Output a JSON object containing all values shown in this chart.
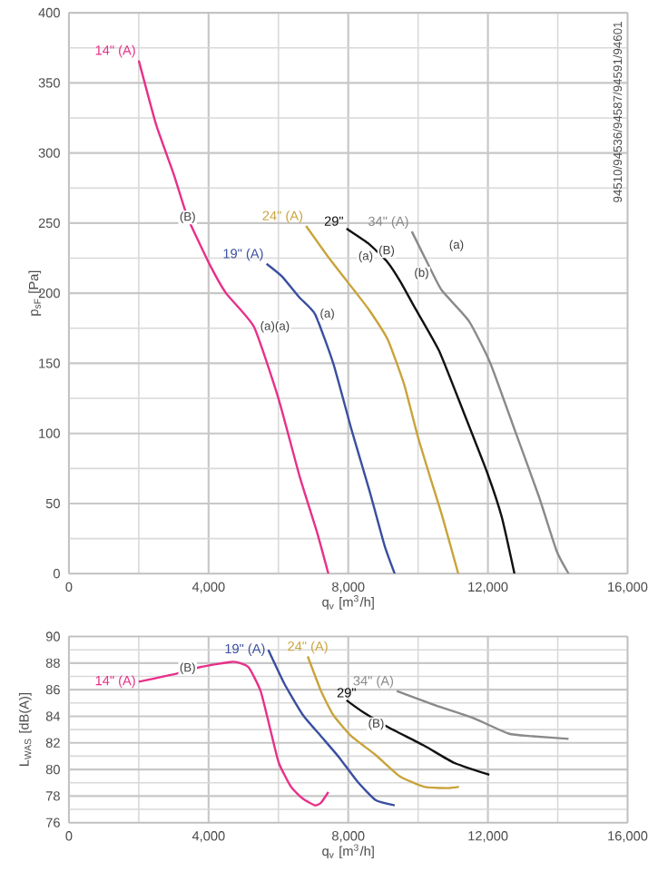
{
  "chart_data": [
    {
      "type": "line",
      "xlabel": "q$_{v}$ [m$^{3}$/h]",
      "ylabel": "p$_{sF}$ [Pa]",
      "xlim": [
        0,
        16000
      ],
      "ylim": [
        0,
        400
      ],
      "xticks": [
        0,
        {
          "value": 4000,
          "label": "4,000"
        },
        {
          "value": 8000,
          "label": "8,000"
        },
        {
          "value": 12000,
          "label": "12,000"
        },
        {
          "value": 16000,
          "label": "16,000"
        }
      ],
      "yticks": [
        0,
        50,
        100,
        150,
        200,
        250,
        300,
        350,
        400
      ],
      "grid": true,
      "series": [
        {
          "name": "14\" (A)",
          "color": "#e8308a",
          "x": [
            2000,
            2500,
            3000,
            3400,
            4000,
            4500,
            5300,
            6000,
            6600,
            7100,
            7430
          ],
          "values": [
            366,
            320,
            285,
            254,
            222,
            200,
            176,
            125,
            70,
            30,
            0
          ]
        },
        {
          "name": "19\" (A)",
          "color": "#3a4fa0",
          "x": [
            5660,
            6100,
            6600,
            7050,
            7570,
            8090,
            8610,
            9040,
            9330
          ],
          "values": [
            221,
            212,
            197,
            185,
            150,
            103,
            59,
            20,
            0
          ]
        },
        {
          "name": "24\" (A)",
          "color": "#c9a33a",
          "x": [
            6790,
            7480,
            8170,
            8600,
            9130,
            9600,
            9990,
            10330,
            10680,
            11150
          ],
          "values": [
            248,
            224,
            202,
            188,
            167,
            135,
            98,
            70,
            42,
            0
          ]
        },
        {
          "name": "29\"",
          "color": "#111111",
          "x": [
            7950,
            8600,
            9130,
            9500,
            9900,
            10600,
            11290,
            11980,
            12400,
            12760
          ],
          "values": [
            246,
            235,
            222,
            208,
            190,
            159,
            116,
            72,
            40,
            0
          ]
        },
        {
          "name": "34\" (A)",
          "color": "#8a8a8a",
          "x": [
            9820,
            10300,
            10680,
            11460,
            12070,
            12760,
            13460,
            13970,
            14310
          ],
          "values": [
            244,
            220,
            202,
            180,
            150,
            103,
            55,
            16,
            0
          ]
        }
      ],
      "annotations": [
        {
          "text": "(B)",
          "x": 3400,
          "y": 254
        },
        {
          "text": "(a)(a)",
          "x": 5900,
          "y": 176
        },
        {
          "text": "(a)",
          "x": 7400,
          "y": 185
        },
        {
          "text": "(a)",
          "x": 8500,
          "y": 226
        },
        {
          "text": "(B)",
          "x": 9100,
          "y": 230
        },
        {
          "text": "(b)",
          "x": 10100,
          "y": 214
        },
        {
          "text": "(a)",
          "x": 11100,
          "y": 234
        },
        "94510/94536/94587/94591/94601"
      ]
    },
    {
      "type": "line",
      "xlabel": "q$_{v}$ [m$^{3}$/h]",
      "ylabel": "L$_{WAS}$ [dB(A)]",
      "xlim": [
        0,
        16000
      ],
      "ylim": [
        76,
        90
      ],
      "xticks": [
        0,
        {
          "value": 4000,
          "label": "4,000"
        },
        {
          "value": 8000,
          "label": "8,000"
        },
        {
          "value": 12000,
          "label": "12,000"
        },
        {
          "value": 16000,
          "label": "16,000"
        }
      ],
      "yticks": [
        76,
        78,
        80,
        82,
        84,
        86,
        88,
        90
      ],
      "grid": true,
      "series": [
        {
          "name": "14\" (A)",
          "color": "#e8308a",
          "x": [
            2000,
            3070,
            3760,
            4710,
            5140,
            5490,
            5750,
            6010,
            6360,
            6700,
            7050,
            7220,
            7430
          ],
          "values": [
            86.6,
            87.2,
            87.7,
            88.1,
            87.7,
            85.9,
            83.2,
            80.5,
            78.7,
            77.8,
            77.3,
            77.5,
            78.3
          ]
        },
        {
          "name": "19\" (A)",
          "color": "#3a4fa0",
          "x": [
            5710,
            6180,
            6700,
            7220,
            7740,
            8260,
            8780,
            9330
          ],
          "values": [
            89.0,
            86.4,
            84.1,
            82.5,
            80.9,
            79.1,
            77.7,
            77.3
          ]
        },
        {
          "name": "24\" (A)",
          "color": "#c9a33a",
          "x": [
            6840,
            7220,
            7570,
            8090,
            8780,
            9470,
            10170,
            10860,
            11170
          ],
          "values": [
            88.5,
            85.9,
            84.1,
            82.5,
            81.1,
            79.5,
            78.7,
            78.6,
            78.7
          ]
        },
        {
          "name": "29\"",
          "color": "#111111",
          "x": [
            7950,
            8430,
            9130,
            10170,
            11030,
            12040
          ],
          "values": [
            85.2,
            84.3,
            83.2,
            81.8,
            80.5,
            79.6
          ]
        },
        {
          "name": "34\" (A)",
          "color": "#8a8a8a",
          "x": [
            9390,
            10510,
            11550,
            12590,
            13280,
            14310
          ],
          "values": [
            85.9,
            84.8,
            83.9,
            82.7,
            82.5,
            82.3
          ]
        }
      ],
      "annotations": [
        {
          "text": "(B)",
          "x": 3400,
          "y": 87.6
        },
        {
          "text": "(B)",
          "x": 8800,
          "y": 83.4
        }
      ]
    }
  ]
}
